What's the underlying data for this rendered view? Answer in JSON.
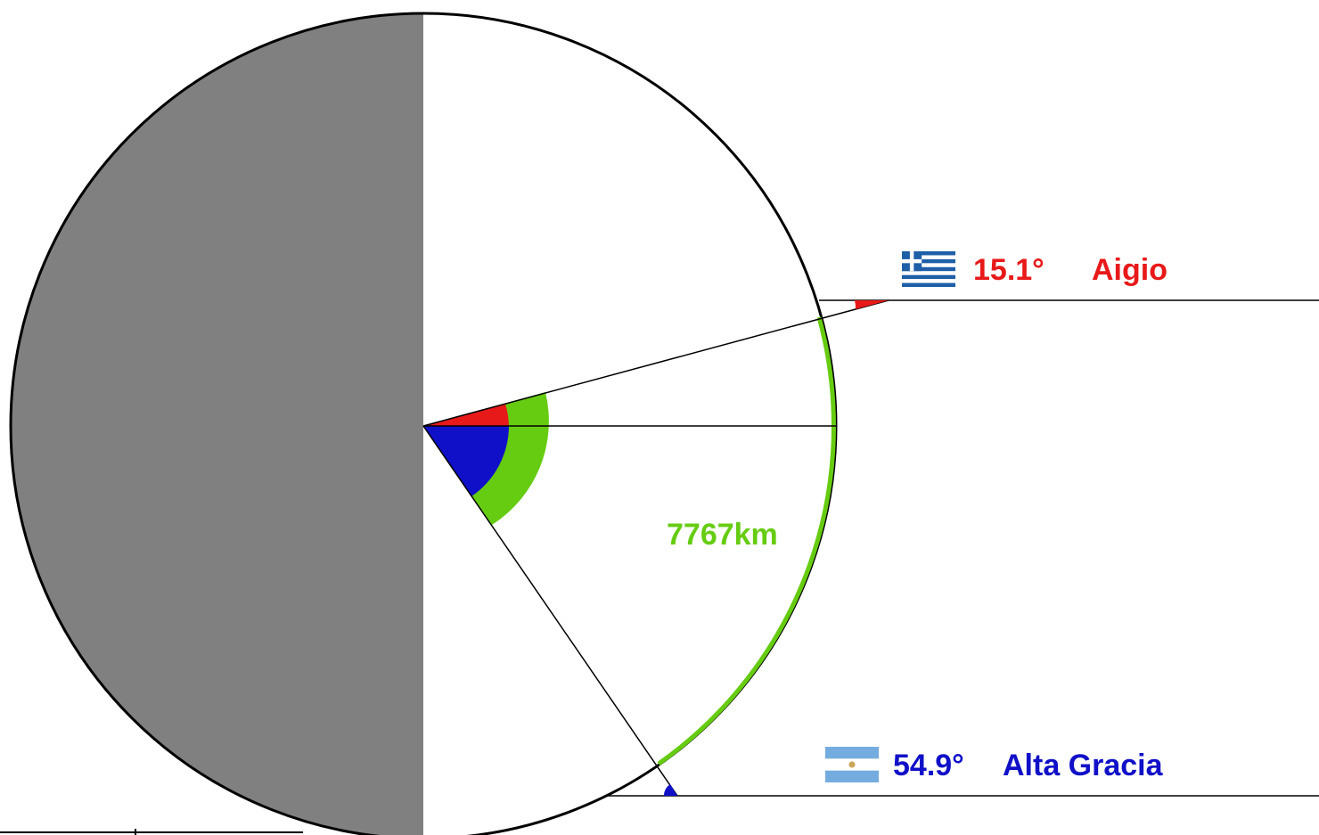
{
  "colors": {
    "night": "#808080",
    "outline": "#000000",
    "aigio": "#e81919",
    "alta_gracia": "#1010c8",
    "arc": "#66cc11",
    "greek_blue": "#1f5fa8",
    "arg_blue": "#74acdf",
    "arg_sun": "#c9a75a"
  },
  "aigio": {
    "angle": "15.1°",
    "name": "Aigio",
    "flag_icon": "greece-flag-icon"
  },
  "alta_gracia": {
    "angle": "54.9°",
    "name": "Alta Gracia",
    "flag_icon": "argentina-flag-icon"
  },
  "arc": {
    "distance": "7767km"
  }
}
